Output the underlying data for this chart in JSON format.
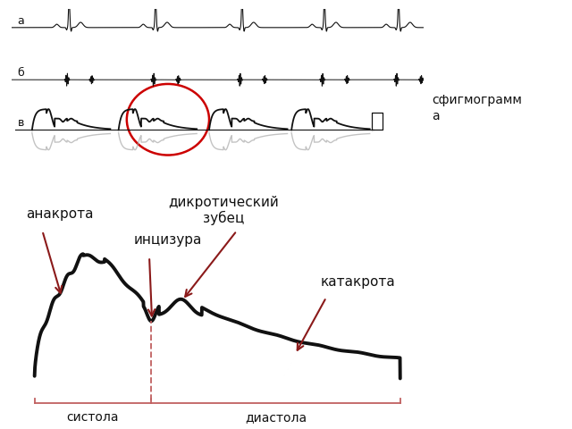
{
  "bg_color": "#ffffff",
  "sfigmo_label": "сфигмограмм\nа",
  "labels": {
    "anakrota": "анакрота",
    "inkrizura": "инцизура",
    "dikrot": "дикротический\nзубец",
    "katakrota": "катакрота",
    "systola": "систола",
    "diastola": "диастола"
  },
  "arrow_color": "#8b1a1a",
  "line_color": "#111111",
  "dashed_color": "#c06060",
  "bracket_color": "#c06060",
  "circle_color": "#cc0000",
  "top_traces_light": "#aaaaaa"
}
